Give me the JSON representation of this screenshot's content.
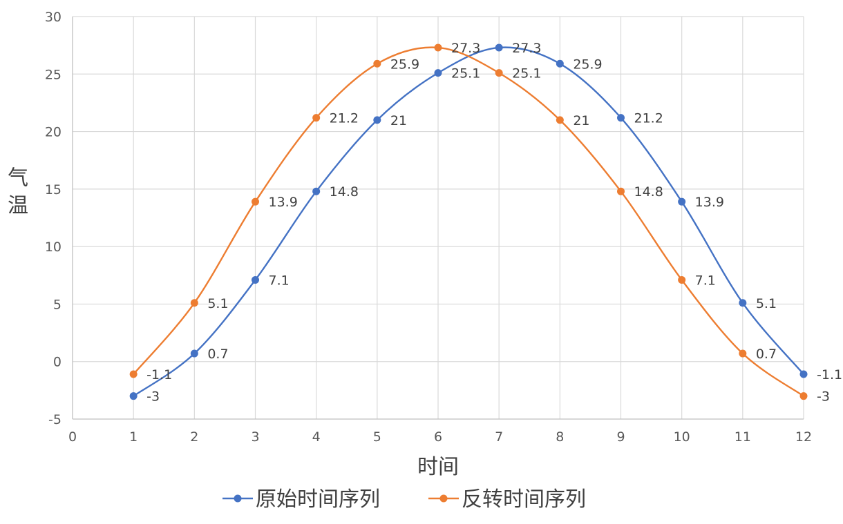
{
  "chart_data": {
    "type": "line",
    "smooth": true,
    "title": "",
    "xlabel": "时间",
    "ylabel": "气温",
    "xlim": [
      0,
      12
    ],
    "ylim": [
      -5,
      30
    ],
    "x_ticks": [
      0,
      1,
      2,
      3,
      4,
      5,
      6,
      7,
      8,
      9,
      10,
      11,
      12
    ],
    "y_ticks": [
      -5,
      0,
      5,
      10,
      15,
      20,
      25,
      30
    ],
    "grid": true,
    "legend_position": "bottom",
    "x": [
      1,
      2,
      3,
      4,
      5,
      6,
      7,
      8,
      9,
      10,
      11,
      12
    ],
    "series": [
      {
        "name": "原始时间序列",
        "color": "#4472C4",
        "values": [
          -3,
          0.7,
          7.1,
          14.8,
          21,
          25.1,
          27.3,
          25.9,
          21.2,
          13.9,
          5.1,
          -1.1
        ],
        "labels": [
          "-3",
          "0.7",
          "7.1",
          "14.8",
          "21",
          "25.1",
          "27.3",
          "25.9",
          "21.2",
          "13.9",
          "5.1",
          "-1.1"
        ]
      },
      {
        "name": "反转时间序列",
        "color": "#ED7D31",
        "values": [
          -1.1,
          5.1,
          13.9,
          21.2,
          25.9,
          27.3,
          25.1,
          21,
          14.8,
          7.1,
          0.7,
          -3
        ],
        "labels": [
          "-1.1",
          "5.1",
          "13.9",
          "21.2",
          "25.9",
          "27.3",
          "25.1",
          "21",
          "14.8",
          "7.1",
          "0.7",
          "-3"
        ]
      }
    ],
    "colors": {
      "grid": "#D9D9D9",
      "axis": "#BFBFBF"
    }
  }
}
